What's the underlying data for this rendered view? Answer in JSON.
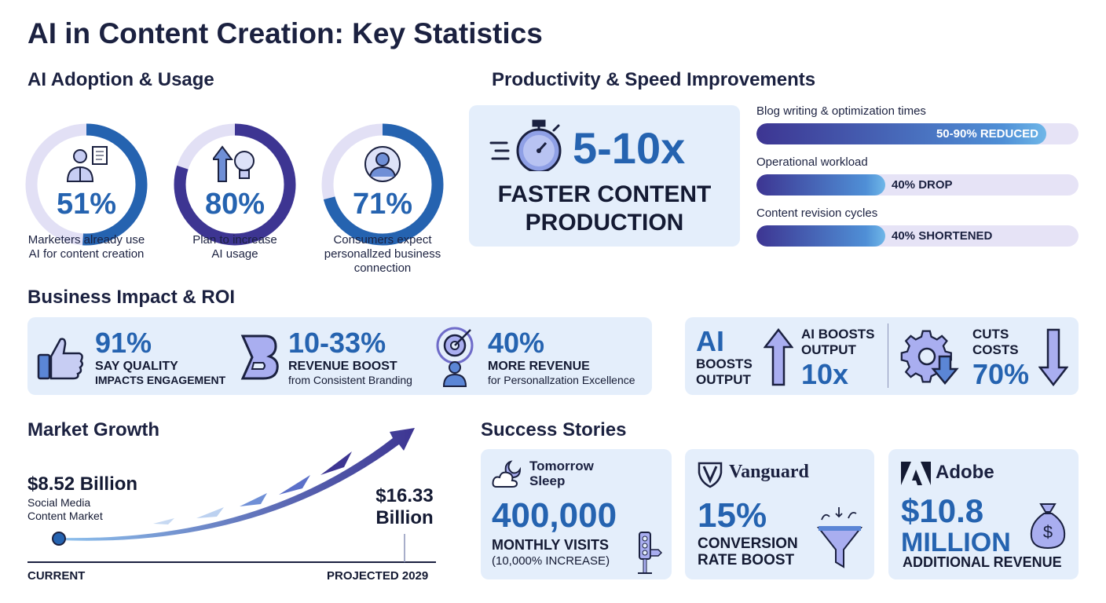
{
  "title": "AI in Content Creation: Key Statistics",
  "adoption": {
    "heading": "AI Adoption & Usage",
    "items": [
      {
        "value": "51%",
        "percent": 51,
        "label1": "Marketers already use",
        "label2": "AI for content creation",
        "label3": "",
        "color": "#2563b0",
        "icon": "marketer-document-icon"
      },
      {
        "value": "80%",
        "percent": 80,
        "label1": "Plan to increase",
        "label2": "AI usage",
        "label3": "",
        "color": "#3d3592",
        "icon": "arrow-lightbulb-icon"
      },
      {
        "value": "71%",
        "percent": 71,
        "label1": "Consumers expect",
        "label2": "personallzed business",
        "label3": "connection",
        "color": "#2563b0",
        "icon": "user-circle-icon"
      }
    ]
  },
  "productivity": {
    "heading": "Productivity & Speed Improvements",
    "big": "5-10x",
    "line1": "FASTER CONTENT",
    "line2": "PRODUCTION",
    "icon": "stopwatch-icon",
    "bars": [
      {
        "label": "Blog writing & optimization times",
        "text": "50-90% REDUCED",
        "percent": 90
      },
      {
        "label": "Operational workload",
        "text": "40% DROP",
        "percent": 40
      },
      {
        "label": "Content revision cycles",
        "text": "40% SHORTENED",
        "percent": 40
      }
    ]
  },
  "business": {
    "heading": "Business Impact & ROI",
    "items": [
      {
        "value": "91%",
        "l1": "SAY QUALITY",
        "l2": "IMPACTS ENGAGEMENT",
        "icon": "thumbs-up-icon"
      },
      {
        "value": "10-33%",
        "l1": "REVENUE BOOST",
        "l2": "from Consistent Branding",
        "icon": "brand-b-icon"
      },
      {
        "value": "40%",
        "l1": "MORE REVENUE",
        "l2": "for Personallzation Excellence",
        "icon": "target-person-icon"
      }
    ],
    "ai": {
      "big": "AI",
      "l1": "BOOSTS",
      "l2": "OUTPUT",
      "t1": "AI BOOSTS",
      "t2": "OUTPUT",
      "v": "10x"
    },
    "costs": {
      "t1": "CUTS",
      "t2": "COSTS",
      "v": "70%"
    }
  },
  "market": {
    "heading": "Market Growth",
    "current_value": "$8.52 Billion",
    "current_label1": "Social Media",
    "current_label2": "Content Market",
    "projected_value1": "$16.33",
    "projected_value2": "Billion",
    "axis_start": "CURRENT",
    "axis_end": "PROJECTED 2029"
  },
  "success": {
    "heading": "Success Stories",
    "items": [
      {
        "brand1": "Tomorrow",
        "brand2": "Sleep",
        "value": "400,000",
        "l1": "MONTHLY VISITS",
        "l2": "(10,000% INCREASE)"
      },
      {
        "brand1": "Vanguard",
        "value": "15%",
        "l1": "CONVERSION",
        "l2": "RATE BOOST"
      },
      {
        "brand1": "Adobe",
        "value": "$10.8",
        "value2": "MILLION",
        "l1": "ADDITIONAL REVENUE"
      }
    ]
  }
}
